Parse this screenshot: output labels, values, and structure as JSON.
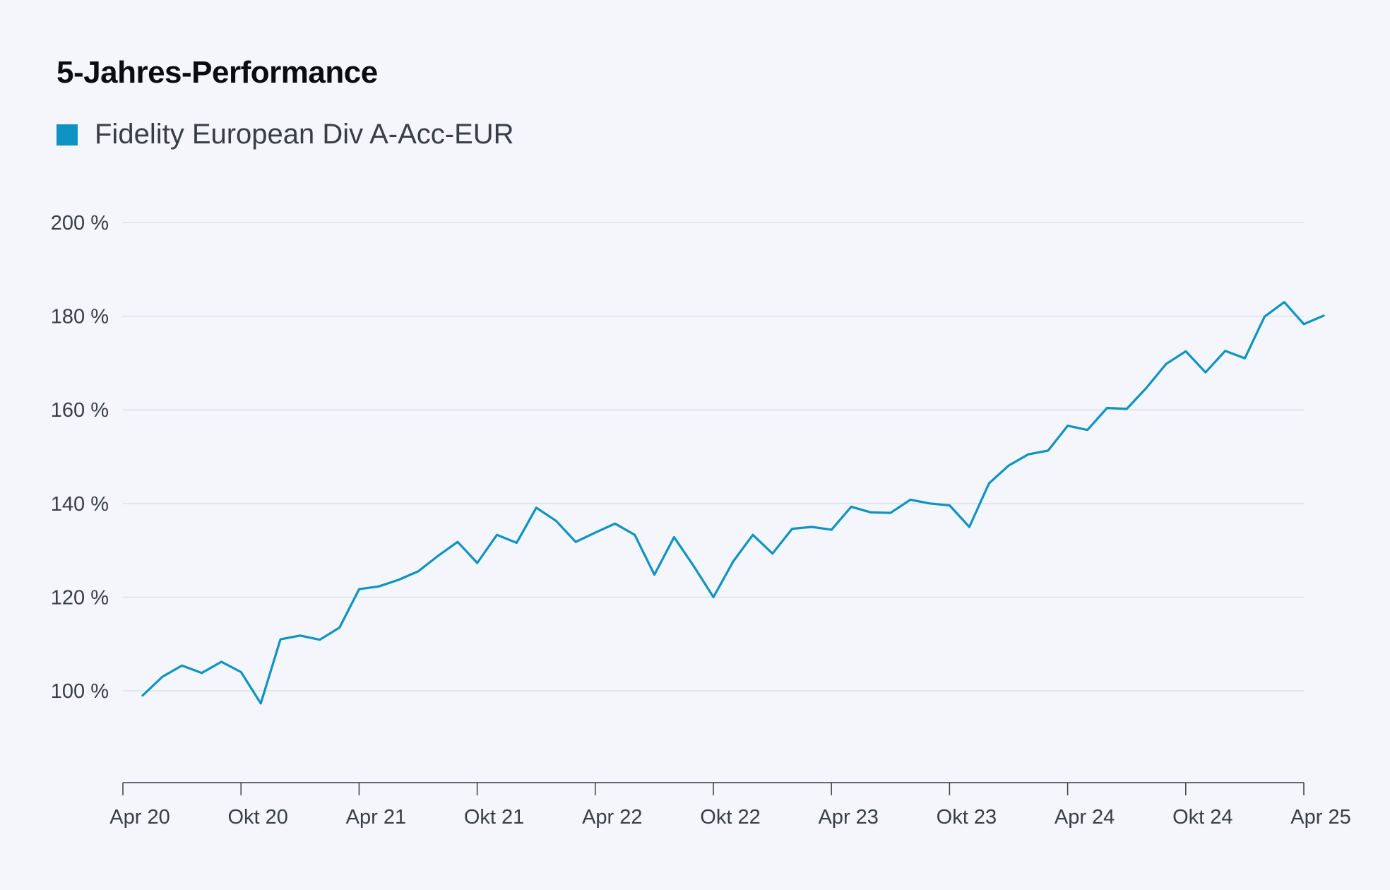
{
  "title": "5-Jahres-Performance",
  "legend": {
    "label": "Fidelity European Div A-Acc-EUR",
    "color": "#0e93c2"
  },
  "chart_data": {
    "type": "line",
    "title": "5-Jahres-Performance",
    "xlabel": "",
    "ylabel": "",
    "ylim": [
      80,
      200
    ],
    "y_ticks": [
      100,
      120,
      140,
      160,
      180,
      200
    ],
    "y_tick_labels": [
      "100 %",
      "120 %",
      "140 %",
      "160 %",
      "180 %",
      "200 %"
    ],
    "x_ticks": [
      "Apr 20",
      "Okt 20",
      "Apr 21",
      "Okt 21",
      "Apr 22",
      "Okt 22",
      "Apr 23",
      "Okt 23",
      "Apr 24",
      "Okt 24",
      "Apr 25"
    ],
    "grid": true,
    "legend_position": "top-left",
    "series": [
      {
        "name": "Fidelity European Div A-Acc-EUR",
        "color": "#0e93c2",
        "x_start": "2020-04",
        "frequency": "monthly",
        "values": [
          99,
          103,
          105.4,
          103.8,
          106.2,
          104,
          97.3,
          111,
          111.8,
          110.9,
          113.5,
          121.7,
          122.3,
          123.7,
          125.5,
          128.8,
          131.8,
          127.3,
          133.3,
          131.6,
          139.1,
          136.3,
          131.8,
          133.8,
          135.7,
          133.3,
          124.8,
          132.8,
          126.6,
          120,
          127.6,
          133.3,
          129.3,
          134.6,
          135,
          134.4,
          139.3,
          138.1,
          138,
          140.8,
          140,
          139.6,
          135,
          144.3,
          148.1,
          150.5,
          151.3,
          156.6,
          155.7,
          160.4,
          160.2,
          164.7,
          169.8,
          172.5,
          168,
          172.6,
          171,
          179.9,
          183,
          178.3,
          180.1
        ]
      }
    ]
  }
}
